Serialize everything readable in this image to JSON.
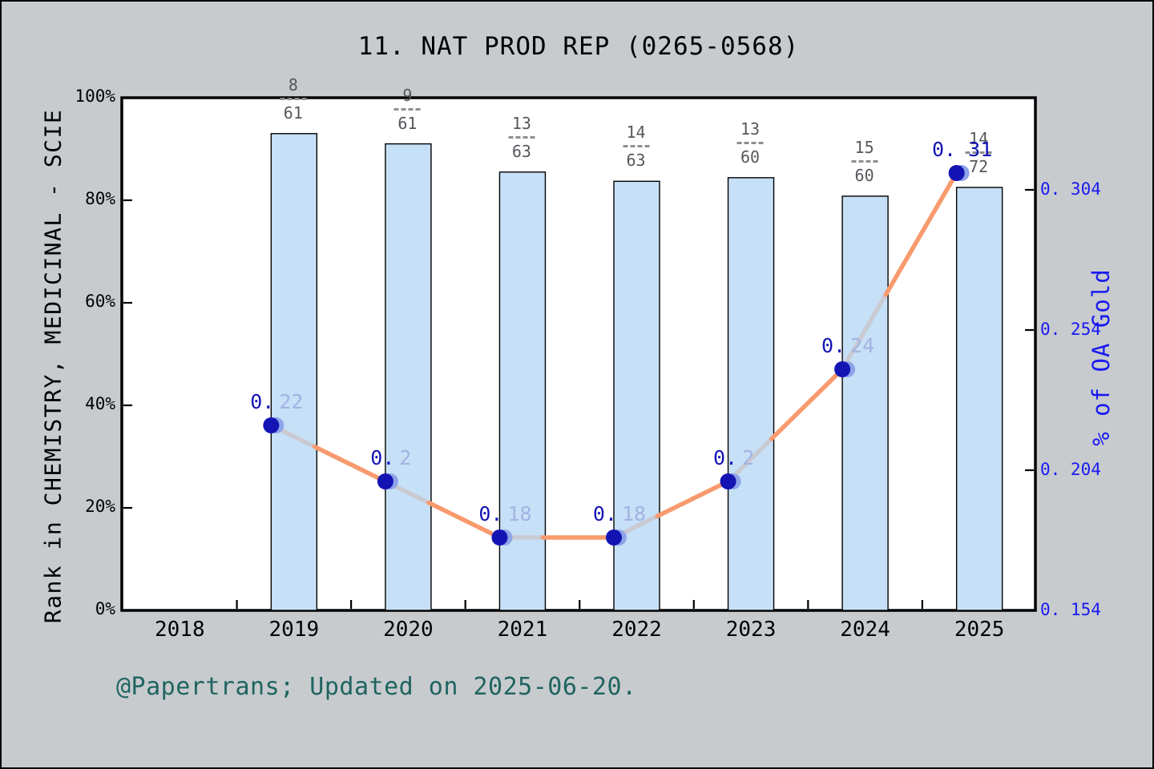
{
  "title": "11. NAT PROD REP (0265-0568)",
  "footer": "@Papertrans; Updated on 2025-06-20.",
  "colors": {
    "background": "#c7cbce",
    "plot_background": "#ffffff",
    "frame": "#000000",
    "bar_fill": "#c6e0f7",
    "bar_edge": "#000000",
    "line_orange": "#f89a6e",
    "line_gray": "#c9cad2",
    "marker_dark": "#1414b4",
    "marker_light": "#8da4e9",
    "point_label_dark": "#1414b4",
    "point_label_light": "#a3b3e3",
    "right_axis_blue": "#1a1af0",
    "fraction_text": "#55585c",
    "footer_teal": "#206460"
  },
  "chart_data": {
    "type": "bar+line (dual axis)",
    "title": "11. NAT PROD REP (0265-0568)",
    "x_axis": {
      "tick_labels": [
        "2018",
        "2019",
        "2020",
        "2021",
        "2022",
        "2023",
        "2024",
        "2025"
      ],
      "minor_ticks_between_years": true
    },
    "left_axis": {
      "label": "Rank in CHEMISTRY, MEDICINAL - SCIE",
      "tick_labels": [
        "0%",
        "20%",
        "40%",
        "60%",
        "80%",
        "100%"
      ],
      "tick_values": [
        0,
        20,
        40,
        60,
        80,
        100
      ],
      "range": [
        0,
        100
      ]
    },
    "right_axis": {
      "label": "% of OA Gold",
      "tick_labels": [
        "0. 154",
        "0. 204",
        "0. 254",
        "0. 304"
      ],
      "tick_values": [
        0.154,
        0.204,
        0.254,
        0.304
      ]
    },
    "bars": {
      "name": "Rank percentile bars",
      "years": [
        2019,
        2020,
        2021,
        2022,
        2023,
        2024,
        2025
      ],
      "values_pct": [
        93.0,
        91.0,
        85.5,
        83.7,
        84.4,
        80.8,
        82.5
      ],
      "fraction_labels": [
        {
          "numerator": "8",
          "denominator": "61"
        },
        {
          "numerator": "9",
          "denominator": "61"
        },
        {
          "numerator": "13",
          "denominator": "63"
        },
        {
          "numerator": "14",
          "denominator": "63"
        },
        {
          "numerator": "13",
          "denominator": "60"
        },
        {
          "numerator": "15",
          "denominator": "60"
        },
        {
          "numerator": "14",
          "denominator": "72"
        }
      ]
    },
    "line": {
      "name": "% of OA Gold",
      "years": [
        2019,
        2020,
        2021,
        2022,
        2023,
        2024,
        2025
      ],
      "values": [
        0.22,
        0.2,
        0.18,
        0.18,
        0.2,
        0.24,
        0.31
      ],
      "point_labels": [
        {
          "dark": "0.",
          "light": "22"
        },
        {
          "dark": "0.",
          "light": "2"
        },
        {
          "dark": "0.",
          "light": "18"
        },
        {
          "dark": "0.",
          "light": "18"
        },
        {
          "dark": "0.",
          "light": "2"
        },
        {
          "dark": "0.",
          "light": "24"
        },
        {
          "dark": "0. 31",
          "light": ""
        }
      ]
    },
    "legend": "none",
    "grid": "off"
  }
}
